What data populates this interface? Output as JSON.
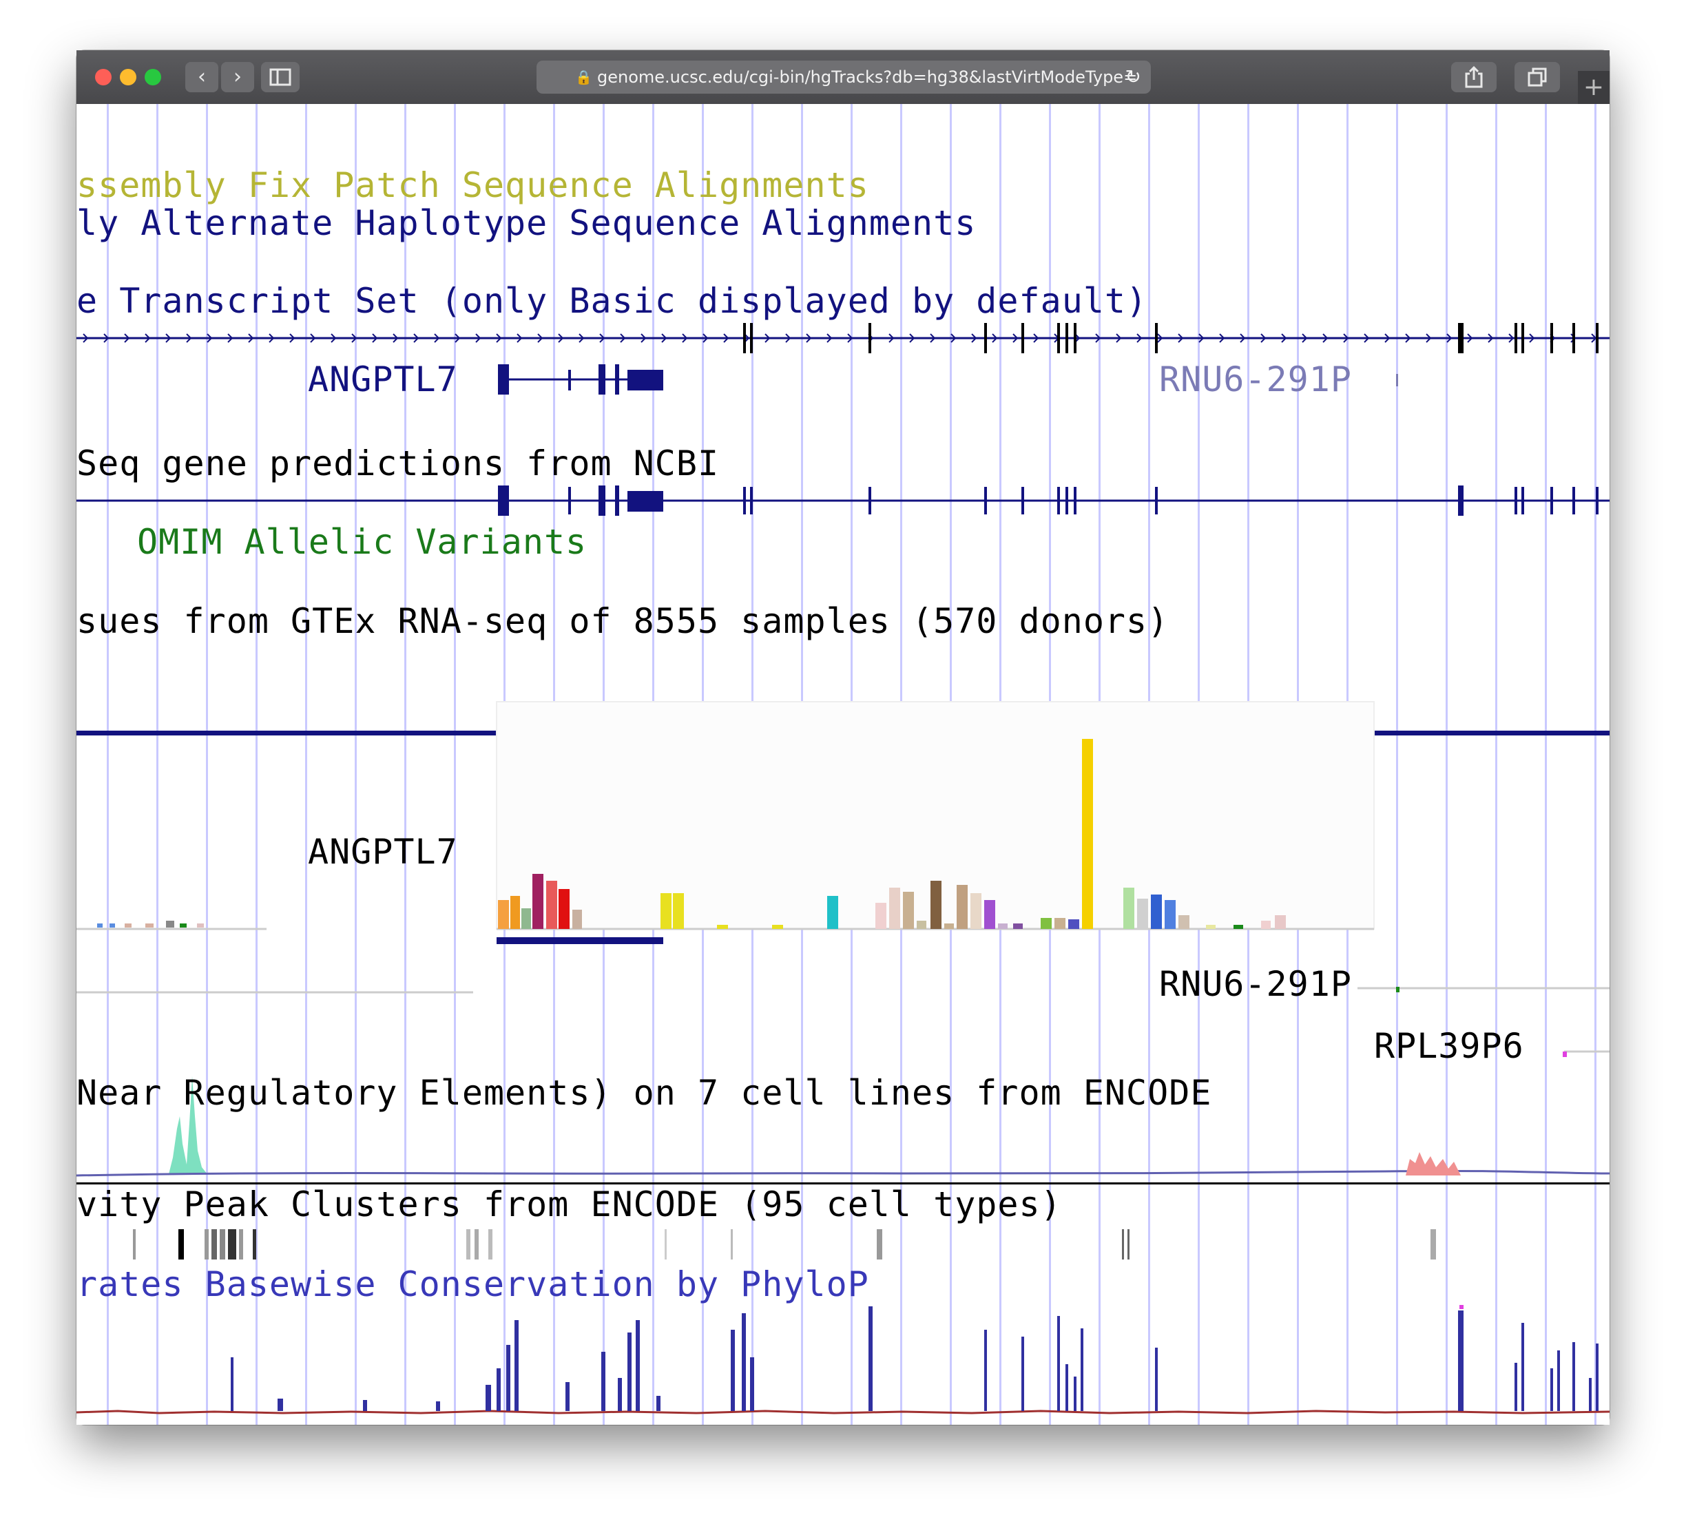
{
  "browser": {
    "url": "genome.ucsc.edu/cgi-bin/hgTracks?db=hg38&lastVirtModeType=",
    "lock_icon": "lock-icon",
    "back_icon": "chevron-left-icon",
    "forward_icon": "chevron-right-icon",
    "sidebar_icon": "sidebar-icon",
    "reload_icon": "reload-icon",
    "share_icon": "share-icon",
    "tabs_icon": "tabs-icon",
    "new_tab_icon": "plus-icon"
  },
  "tracks": {
    "fix_patch": "ssembly Fix Patch Sequence Alignments",
    "alt_haplotype": "ly Alternate Haplotype Sequence Alignments",
    "gencode": "e Transcript Set (only Basic displayed by default)",
    "gene_angptl7": "ANGPTL7",
    "gene_rnu6": "RNU6-291P",
    "refseq": "Seq gene predictions from NCBI",
    "omim": "OMIM Allelic Variants",
    "gtex": "sues from GTEx RNA-seq of 8555 samples (570 donors)",
    "gtex_gene": "ANGPTL7",
    "gtex_rnu6": "RNU6-291P",
    "gtex_rpl39": "RPL39P6",
    "encode_reg": "Near Regulatory Elements) on 7 cell lines from ENCODE",
    "dnase": "vity Peak Clusters from ENCODE (95 cell types)",
    "phylop": "rates Basewise Conservation by PhyloP"
  },
  "colors": {
    "fix_patch": "#b5b535",
    "dark_blue": "#12127f",
    "light_blue_label": "#7b7bb5",
    "green": "#1a7a1a",
    "black": "#000000",
    "phylop_label": "#3838b8",
    "grid": "#c9c9ff"
  }
}
